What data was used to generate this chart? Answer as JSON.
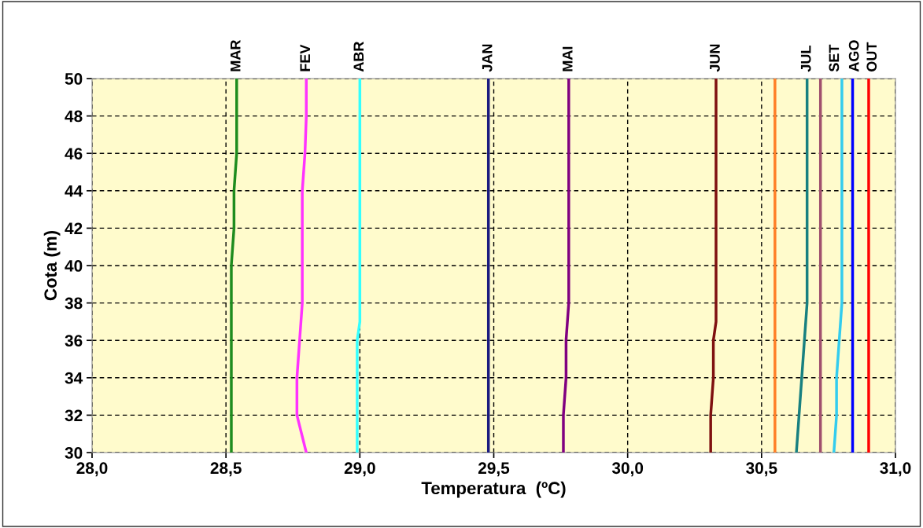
{
  "chart_data": {
    "type": "line",
    "xlabel": "Temperatura  (ºC)",
    "ylabel": "Cota (m)",
    "xlim": [
      28,
      31
    ],
    "xticks": [
      {
        "value": 28,
        "label": "28,0"
      },
      {
        "value": 28.5,
        "label": "28,5"
      },
      {
        "value": 29,
        "label": "29,0"
      },
      {
        "value": 29.5,
        "label": "29,5"
      },
      {
        "value": 30,
        "label": "30,0"
      },
      {
        "value": 30.5,
        "label": "30,5"
      },
      {
        "value": 31,
        "label": "31,0"
      }
    ],
    "ylim": [
      30,
      50
    ],
    "yticks": [
      30,
      32,
      34,
      36,
      38,
      40,
      42,
      44,
      46,
      48,
      50
    ],
    "grid": true,
    "line_style": "solid",
    "series": [
      {
        "name": "MAR",
        "color": "#1e8c1e",
        "x": [
          28.52,
          28.52,
          28.52,
          28.52,
          28.52,
          28.52,
          28.53,
          28.53,
          28.54,
          28.54,
          28.54
        ],
        "values": [
          30,
          32,
          34,
          36,
          38,
          40,
          42,
          44,
          46,
          48,
          50
        ]
      },
      {
        "name": "FEV",
        "color": "#ff33ff",
        "x": [
          28.8,
          28.765,
          28.765,
          28.775,
          28.785,
          28.785,
          28.785,
          28.785,
          28.795,
          28.8,
          28.8
        ],
        "values": [
          30,
          32,
          34,
          36,
          38,
          40,
          42,
          44,
          46,
          48,
          50
        ]
      },
      {
        "name": "ABR",
        "color": "#33ffff",
        "x": [
          28.99,
          28.99,
          28.99,
          28.99,
          29.0,
          29.0,
          29.0
        ],
        "values": [
          30,
          32,
          34,
          36,
          37,
          40,
          50
        ]
      },
      {
        "name": "JAN",
        "color": "#1a1a80",
        "x": [
          29.48,
          29.48
        ],
        "values": [
          30,
          50
        ]
      },
      {
        "name": "MAI",
        "color": "#800080",
        "x": [
          29.76,
          29.76,
          29.77,
          29.77,
          29.78,
          29.78
        ],
        "values": [
          30,
          32,
          34,
          36,
          38,
          50
        ]
      },
      {
        "name": "JUN",
        "color": "#7f1010",
        "x": [
          30.31,
          30.31,
          30.32,
          30.32,
          30.33,
          30.33
        ],
        "values": [
          30,
          32,
          34,
          36,
          37,
          50
        ]
      },
      {
        "color": "#ff7f27",
        "x": [
          30.55,
          30.55
        ],
        "values": [
          30,
          50
        ]
      },
      {
        "name": "JUL",
        "color": "#188080",
        "x": [
          30.63,
          30.64,
          30.65,
          30.66,
          30.67,
          30.67
        ],
        "values": [
          30,
          32,
          34,
          36,
          38,
          50
        ]
      },
      {
        "color": "#a0506e",
        "x": [
          30.72,
          30.72
        ],
        "values": [
          30,
          50
        ]
      },
      {
        "name": "SET",
        "color": "#33ccee",
        "x": [
          30.77,
          30.78,
          30.78,
          30.79,
          30.8,
          30.8
        ],
        "values": [
          30,
          32,
          34,
          36,
          38,
          50
        ]
      },
      {
        "name": "AGO",
        "color": "#0000ff",
        "x": [
          30.84,
          30.84
        ],
        "values": [
          30,
          50
        ]
      },
      {
        "name": "OUT",
        "color": "#ff0000",
        "x": [
          30.9,
          30.9
        ],
        "values": [
          30,
          50
        ]
      }
    ]
  }
}
